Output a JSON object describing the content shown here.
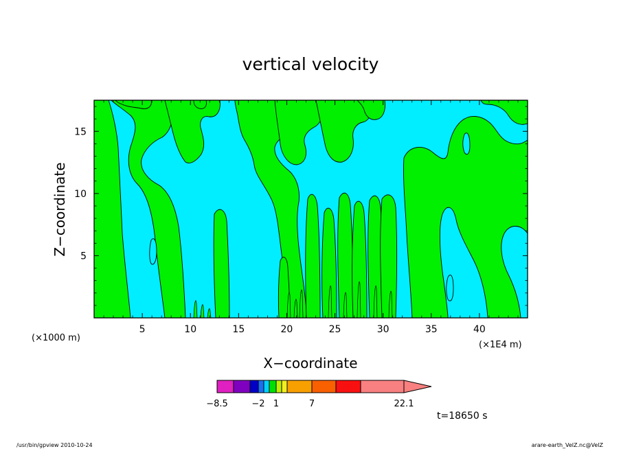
{
  "chart_data": {
    "type": "heatmap",
    "title": "vertical velocity",
    "xlabel": "X−coordinate",
    "ylabel": "Z−coordinate",
    "x_unit": "(×1E4 m)",
    "y_unit": "(×1000 m)",
    "xlim": [
      0,
      45
    ],
    "ylim": [
      0,
      17.5
    ],
    "x_ticks": [
      "5",
      "10",
      "15",
      "20",
      "25",
      "30",
      "35",
      "40"
    ],
    "y_ticks": [
      "5",
      "10",
      "15"
    ],
    "colorbar": {
      "tick_labels": [
        "−8.5",
        "−2",
        "1",
        "7",
        "22.1"
      ],
      "colors": [
        "#e020c0",
        "#8000c0",
        "#0000c8",
        "#1a6ef0",
        "#00d0ff",
        "#00e000",
        "#c0f000",
        "#f0f020",
        "#f8a000",
        "#f86000",
        "#f81010",
        "#f88080"
      ]
    },
    "fill_colors": {
      "positive": "#00f000",
      "negative": "#00eeff",
      "contour": "#000000"
    },
    "time_label": "t=18650 s"
  },
  "footer": {
    "left": "/usr/bin/gpview   2010-10-24",
    "right": "arare-earth_VelZ.nc@VelZ"
  }
}
